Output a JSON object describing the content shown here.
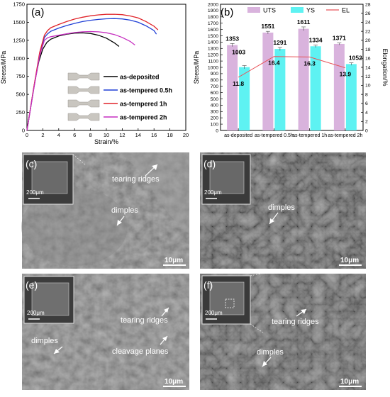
{
  "panels": {
    "a": "(a)",
    "b": "(b)",
    "c": "(c)",
    "d": "(d)",
    "e": "(e)",
    "f": "(f)"
  },
  "chart_data": [
    {
      "type": "line",
      "panel": "(a)",
      "xlabel": "Strain/%",
      "ylabel": "Stress/MPa",
      "xlim": [
        0,
        20
      ],
      "ylim": [
        0,
        1750
      ],
      "xticks": [
        0,
        2,
        4,
        6,
        8,
        10,
        12,
        14,
        16,
        18,
        20
      ],
      "yticks": [
        0,
        250,
        500,
        750,
        1000,
        1250,
        1500,
        1750
      ],
      "legend_position": "bottom-right",
      "series": [
        {
          "name": "as-deposited",
          "color": "#000000",
          "x": [
            0,
            0.5,
            1,
            1.5,
            2,
            2.5,
            3,
            4,
            5,
            6,
            7,
            8,
            9,
            10,
            11,
            11.6
          ],
          "y": [
            0,
            340,
            680,
            960,
            1130,
            1220,
            1265,
            1310,
            1335,
            1350,
            1353,
            1345,
            1320,
            1280,
            1215,
            1165
          ]
        },
        {
          "name": "as-tempered 0.5h",
          "color": "#1f3fd6",
          "x": [
            0,
            0.8,
            1.6,
            2.2,
            2.6,
            3,
            4,
            5,
            6,
            7,
            8,
            9,
            10,
            11,
            12,
            13,
            14,
            15,
            16,
            16.3
          ],
          "y": [
            0,
            550,
            1060,
            1290,
            1340,
            1375,
            1420,
            1455,
            1485,
            1510,
            1528,
            1540,
            1548,
            1551,
            1546,
            1530,
            1500,
            1450,
            1385,
            1335
          ]
        },
        {
          "name": "as-tempered 1h",
          "color": "#e0242a",
          "x": [
            0,
            0.8,
            1.6,
            2.2,
            2.6,
            3,
            4,
            5,
            6,
            7,
            8,
            9,
            10,
            11,
            12,
            13,
            14,
            15,
            16,
            16.5
          ],
          "y": [
            0,
            560,
            1080,
            1320,
            1385,
            1425,
            1470,
            1510,
            1545,
            1570,
            1590,
            1603,
            1610,
            1611,
            1605,
            1588,
            1560,
            1510,
            1445,
            1395
          ]
        },
        {
          "name": "as-tempered 2h",
          "color": "#c62fc0",
          "x": [
            0,
            0.8,
            1.6,
            2.2,
            2.6,
            3,
            4,
            5,
            6,
            7,
            8,
            9,
            10,
            11,
            12,
            13,
            13.6
          ],
          "y": [
            0,
            540,
            1040,
            1250,
            1285,
            1300,
            1320,
            1340,
            1358,
            1368,
            1371,
            1368,
            1355,
            1330,
            1290,
            1235,
            1185
          ]
        }
      ]
    },
    {
      "type": "bar",
      "panel": "(b)",
      "categories": [
        "as-deposited",
        "as-tempered 0.5h",
        "as-tempered 1h",
        "as-tempered 2h"
      ],
      "ylabel": "Stress/MPa",
      "y2label": "Elongation/%",
      "ylim": [
        0,
        2000
      ],
      "y2lim": [
        0,
        28
      ],
      "yticks": [
        0,
        100,
        200,
        300,
        400,
        500,
        600,
        700,
        800,
        900,
        1000,
        1100,
        1200,
        1300,
        1400,
        1500,
        1600,
        1700,
        1800,
        1900,
        2000
      ],
      "y2ticks": [
        0,
        2,
        4,
        6,
        8,
        10,
        12,
        14,
        16,
        18,
        20,
        22,
        24,
        26,
        28
      ],
      "legend_position": "top",
      "series": [
        {
          "name": "UTS",
          "color": "#d9b3dd",
          "values": [
            1353,
            1551,
            1611,
            1371
          ],
          "errors": [
            25,
            20,
            30,
            15
          ]
        },
        {
          "name": "YS",
          "color": "#5ef2f2",
          "values": [
            1003,
            1291,
            1334,
            1052
          ],
          "errors": [
            25,
            25,
            20,
            20
          ]
        },
        {
          "name": "EL",
          "color": "#e8545a",
          "axis": "right",
          "values": [
            11.8,
            16.4,
            16.3,
            13.9
          ]
        }
      ]
    }
  ],
  "specimen_legend": [
    "as-deposited",
    "as-tempered 0.5h",
    "as-tempered 1h",
    "as-tempered 2h"
  ],
  "micrographs": {
    "c": {
      "scale_inset": "200μm",
      "scale_main": "10μm",
      "labels": [
        "tearing ridges",
        "dimples"
      ]
    },
    "d": {
      "scale_inset": "200μm",
      "scale_main": "10μm",
      "labels": [
        "dimples"
      ]
    },
    "e": {
      "scale_inset": "200μm",
      "scale_main": "10μm",
      "labels": [
        "tearing ridges",
        "dimples",
        "cleavage planes"
      ]
    },
    "f": {
      "scale_inset": "200μm",
      "scale_main": "10μm",
      "labels": [
        "tearing ridges",
        "dimples"
      ]
    }
  }
}
